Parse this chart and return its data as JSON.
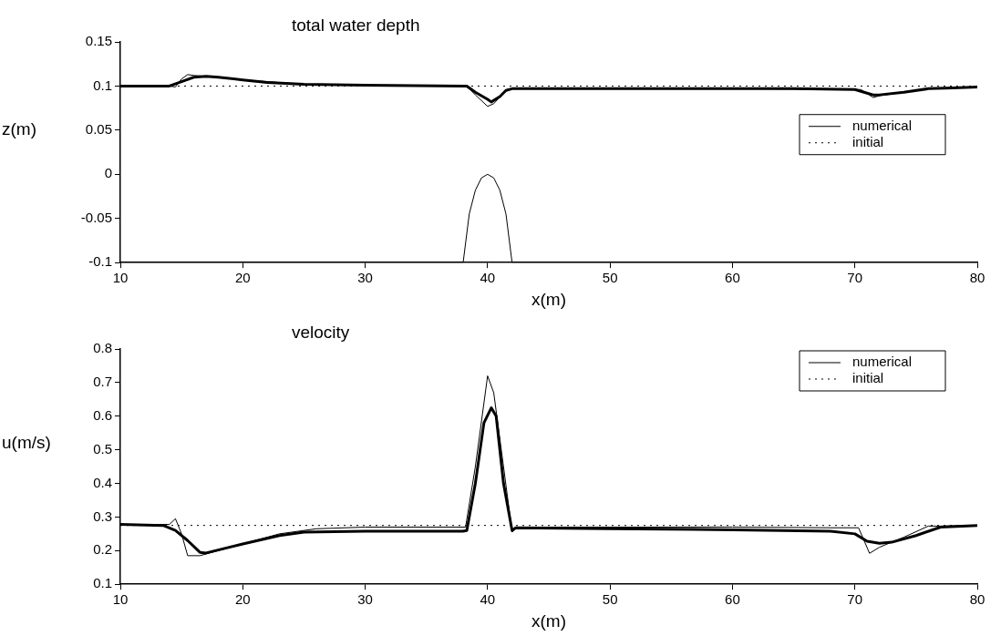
{
  "chart_data": [
    {
      "type": "line",
      "title": "total water depth",
      "xlabel": "x(m)",
      "ylabel": "z(m)",
      "xlim": [
        10,
        80
      ],
      "xticks": [
        10,
        20,
        30,
        40,
        50,
        60,
        70,
        80
      ],
      "ylim": [
        -0.1,
        0.15
      ],
      "yticks": [
        -0.1,
        -0.05,
        0,
        0.05,
        0.1,
        0.15
      ],
      "grid": false,
      "legend": "right",
      "marker": "none",
      "series": [
        {
          "name": "numerical",
          "color": "#000000",
          "line_style": "solid",
          "x": [
            10,
            14,
            15,
            16,
            17,
            18,
            20,
            22,
            25,
            30,
            38,
            38.3,
            39,
            40,
            40.3,
            41,
            41.5,
            42,
            50,
            60,
            65,
            70,
            71,
            71.5,
            72,
            74,
            76,
            78,
            80
          ],
          "values": [
            0.1,
            0.1,
            0.105,
            0.11,
            0.111,
            0.11,
            0.107,
            0.104,
            0.102,
            0.101,
            0.1,
            0.1,
            0.093,
            0.085,
            0.082,
            0.088,
            0.095,
            0.097,
            0.097,
            0.097,
            0.097,
            0.096,
            0.092,
            0.09,
            0.09,
            0.093,
            0.097,
            0.098,
            0.099
          ]
        },
        {
          "color": "#000000",
          "line_style": "solid",
          "x": [
            10,
            14,
            14.5,
            15,
            15.5,
            16,
            17,
            20,
            25,
            30,
            38.3,
            39,
            40,
            40.5,
            41.5,
            42,
            50,
            60,
            70.5,
            71.5,
            72,
            74,
            76,
            80
          ],
          "values": [
            0.1,
            0.1,
            0.099,
            0.108,
            0.113,
            0.112,
            0.111,
            0.107,
            0.102,
            0.101,
            0.1,
            0.09,
            0.077,
            0.08,
            0.095,
            0.097,
            0.097,
            0.097,
            0.096,
            0.087,
            0.089,
            0.093,
            0.097,
            0.099
          ]
        },
        {
          "name": "initial",
          "color": "#000000",
          "line_style": "dotted",
          "x": [
            10,
            80
          ],
          "values": [
            0.1,
            0.1
          ]
        },
        {
          "color": "#000000",
          "line_style": "solid",
          "x": [
            10,
            38,
            38.5,
            39,
            39.5,
            40,
            40.5,
            41,
            41.5,
            42,
            80
          ],
          "values": [
            -0.1,
            -0.1,
            -0.045,
            -0.018,
            -0.004,
            0,
            -0.004,
            -0.018,
            -0.045,
            -0.1,
            -0.1
          ]
        }
      ]
    },
    {
      "type": "line",
      "title": "velocity",
      "xlabel": "x(m)",
      "ylabel": "u(m/s)",
      "xlim": [
        10,
        80
      ],
      "xticks": [
        10,
        20,
        30,
        40,
        50,
        60,
        70,
        80
      ],
      "ylim": [
        0.1,
        0.8
      ],
      "yticks": [
        0.1,
        0.2,
        0.3,
        0.4,
        0.5,
        0.6,
        0.7,
        0.8
      ],
      "grid": false,
      "legend": "top right",
      "marker": "none",
      "series": [
        {
          "name": "numerical",
          "color": "#000000",
          "line_style": "solid",
          "x": [
            10,
            13.5,
            14.5,
            15.5,
            16.5,
            17,
            20,
            23,
            25,
            30,
            38,
            38.3,
            39,
            39.7,
            40.3,
            40.7,
            41.3,
            42,
            42.3,
            50,
            60,
            68,
            70,
            71,
            72,
            73,
            75,
            77,
            80
          ],
          "values": [
            0.278,
            0.275,
            0.26,
            0.23,
            0.195,
            0.193,
            0.22,
            0.245,
            0.255,
            0.258,
            0.258,
            0.26,
            0.4,
            0.58,
            0.625,
            0.6,
            0.4,
            0.26,
            0.268,
            0.265,
            0.262,
            0.258,
            0.25,
            0.228,
            0.222,
            0.225,
            0.245,
            0.27,
            0.275
          ]
        },
        {
          "color": "#000000",
          "line_style": "solid",
          "x": [
            10,
            14,
            14.5,
            15,
            15.5,
            16.5,
            17,
            20,
            23,
            26,
            30,
            38.2,
            39,
            40,
            40.5,
            41.3,
            42,
            42.3,
            50,
            60,
            68,
            70.3,
            71.2,
            72,
            74,
            76,
            77,
            80
          ],
          "values": [
            0.278,
            0.278,
            0.295,
            0.25,
            0.185,
            0.185,
            0.19,
            0.22,
            0.25,
            0.265,
            0.27,
            0.27,
            0.45,
            0.72,
            0.67,
            0.45,
            0.255,
            0.27,
            0.27,
            0.27,
            0.268,
            0.268,
            0.192,
            0.21,
            0.24,
            0.273,
            0.273,
            0.275
          ]
        },
        {
          "name": "initial",
          "color": "#000000",
          "line_style": "dotted",
          "x": [
            10,
            80
          ],
          "values": [
            0.275,
            0.275
          ]
        }
      ]
    }
  ]
}
